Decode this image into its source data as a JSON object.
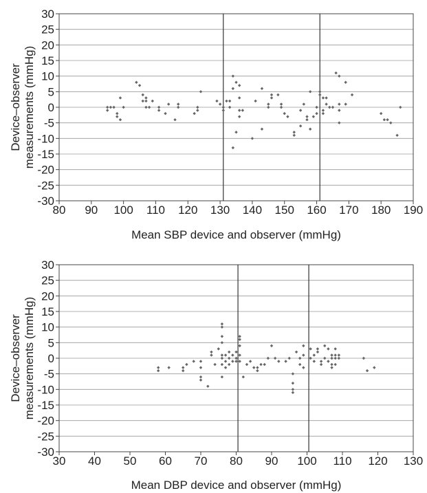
{
  "chart_data": [
    {
      "type": "scatter",
      "xlabel": "Mean SBP device and observer (mmHg)",
      "ylabel": [
        "Device–observer",
        "measurements (mmHg)"
      ],
      "xlim": [
        80,
        190
      ],
      "ylim": [
        -30,
        30
      ],
      "xticks": [
        80,
        90,
        100,
        110,
        120,
        130,
        140,
        150,
        160,
        170,
        180,
        190
      ],
      "yticks": [
        30,
        25,
        20,
        15,
        10,
        5,
        0,
        -5,
        -10,
        -15,
        -20,
        -25,
        -30
      ],
      "grid": "horizontal",
      "vlines": [
        131,
        161
      ],
      "marker_color": "#666666",
      "points": [
        [
          95,
          -1
        ],
        [
          95,
          0
        ],
        [
          96,
          0
        ],
        [
          97,
          0
        ],
        [
          98,
          -2
        ],
        [
          98,
          -3
        ],
        [
          99,
          3
        ],
        [
          99,
          -4
        ],
        [
          100,
          0
        ],
        [
          104,
          8
        ],
        [
          105,
          7
        ],
        [
          106,
          4
        ],
        [
          106,
          2
        ],
        [
          107,
          3
        ],
        [
          107,
          2
        ],
        [
          107,
          0
        ],
        [
          108,
          0
        ],
        [
          109,
          2
        ],
        [
          111,
          -1
        ],
        [
          111,
          0
        ],
        [
          113,
          -2
        ],
        [
          114,
          1
        ],
        [
          116,
          -4
        ],
        [
          117,
          1
        ],
        [
          117,
          0
        ],
        [
          122,
          -2
        ],
        [
          123,
          -1
        ],
        [
          123,
          0
        ],
        [
          124,
          5
        ],
        [
          129,
          2
        ],
        [
          130,
          1
        ],
        [
          131,
          0
        ],
        [
          131,
          -1
        ],
        [
          132,
          2
        ],
        [
          133,
          2
        ],
        [
          133,
          0
        ],
        [
          134,
          10
        ],
        [
          134,
          6
        ],
        [
          134,
          -13
        ],
        [
          135,
          8
        ],
        [
          135,
          -8
        ],
        [
          136,
          3
        ],
        [
          136,
          7
        ],
        [
          136,
          -1
        ],
        [
          137,
          -1
        ],
        [
          136,
          -3
        ],
        [
          140,
          -10
        ],
        [
          141,
          2
        ],
        [
          143,
          6
        ],
        [
          143,
          -7
        ],
        [
          145,
          0
        ],
        [
          145,
          1
        ],
        [
          146,
          4
        ],
        [
          146,
          3
        ],
        [
          148,
          4
        ],
        [
          149,
          1
        ],
        [
          149,
          0
        ],
        [
          150,
          -2
        ],
        [
          151,
          -3
        ],
        [
          153,
          -8
        ],
        [
          153,
          -9
        ],
        [
          155,
          -1
        ],
        [
          155,
          -6
        ],
        [
          156,
          1
        ],
        [
          157,
          -3
        ],
        [
          157,
          -4
        ],
        [
          158,
          5
        ],
        [
          158,
          -7
        ],
        [
          159,
          -3
        ],
        [
          160,
          0
        ],
        [
          160,
          -2
        ],
        [
          161,
          5
        ],
        [
          161,
          4
        ],
        [
          162,
          3
        ],
        [
          162,
          -1
        ],
        [
          162,
          -2
        ],
        [
          163,
          3
        ],
        [
          163,
          1
        ],
        [
          164,
          0
        ],
        [
          165,
          0
        ],
        [
          166,
          11
        ],
        [
          167,
          10
        ],
        [
          167,
          1
        ],
        [
          167,
          -1
        ],
        [
          167,
          -5
        ],
        [
          169,
          8
        ],
        [
          169,
          1
        ],
        [
          171,
          4
        ],
        [
          180,
          -2
        ],
        [
          181,
          -4
        ],
        [
          182,
          -4
        ],
        [
          183,
          -5
        ],
        [
          185,
          -9
        ],
        [
          186,
          0
        ]
      ]
    },
    {
      "type": "scatter",
      "xlabel": "Mean DBP device and observer (mmHg)",
      "ylabel": [
        "Device–observer",
        "measurements (mmHg)"
      ],
      "xlim": [
        30,
        130
      ],
      "ylim": [
        -30,
        30
      ],
      "xticks": [
        30,
        40,
        50,
        60,
        70,
        80,
        90,
        100,
        110,
        120,
        130
      ],
      "yticks": [
        30,
        25,
        20,
        15,
        10,
        5,
        0,
        -5,
        -10,
        -15,
        -20,
        -25,
        -30
      ],
      "grid": "horizontal",
      "vlines": [
        80.5,
        100.5
      ],
      "marker_color": "#666666",
      "points": [
        [
          58,
          -3
        ],
        [
          58,
          -4
        ],
        [
          61,
          -3
        ],
        [
          65,
          -3
        ],
        [
          65,
          -4
        ],
        [
          66,
          -2
        ],
        [
          68,
          -1
        ],
        [
          70,
          -1
        ],
        [
          70,
          -3
        ],
        [
          70,
          -6
        ],
        [
          70,
          -7
        ],
        [
          72,
          -9
        ],
        [
          73,
          2
        ],
        [
          73,
          1
        ],
        [
          74,
          -2
        ],
        [
          75,
          3
        ],
        [
          76,
          11
        ],
        [
          76,
          10
        ],
        [
          76,
          7
        ],
        [
          76,
          5
        ],
        [
          76,
          1
        ],
        [
          76,
          0
        ],
        [
          76,
          -2
        ],
        [
          76,
          -6
        ],
        [
          77,
          1
        ],
        [
          77,
          -1
        ],
        [
          77,
          -3
        ],
        [
          78,
          2
        ],
        [
          78,
          0
        ],
        [
          78,
          -2
        ],
        [
          79,
          1
        ],
        [
          79,
          -1
        ],
        [
          80,
          2
        ],
        [
          80,
          0
        ],
        [
          80,
          -1
        ],
        [
          81,
          7
        ],
        [
          81,
          6
        ],
        [
          81,
          4
        ],
        [
          81,
          1
        ],
        [
          81,
          -1
        ],
        [
          82,
          -6
        ],
        [
          83,
          -2
        ],
        [
          84,
          -1
        ],
        [
          85,
          -3
        ],
        [
          86,
          -3
        ],
        [
          86,
          -4
        ],
        [
          87,
          -2
        ],
        [
          88,
          -2
        ],
        [
          89,
          0
        ],
        [
          90,
          4
        ],
        [
          91,
          0
        ],
        [
          92,
          -1
        ],
        [
          94,
          -1
        ],
        [
          95,
          0
        ],
        [
          96,
          -5
        ],
        [
          96,
          -8
        ],
        [
          96,
          -10
        ],
        [
          96,
          -11
        ],
        [
          97,
          2
        ],
        [
          98,
          0
        ],
        [
          98,
          -2
        ],
        [
          99,
          4
        ],
        [
          99,
          1
        ],
        [
          99,
          -3
        ],
        [
          101,
          3
        ],
        [
          101,
          0
        ],
        [
          102,
          1
        ],
        [
          102,
          -1
        ],
        [
          103,
          3
        ],
        [
          103,
          2
        ],
        [
          104,
          -1
        ],
        [
          104,
          -2
        ],
        [
          105,
          4
        ],
        [
          105,
          0
        ],
        [
          106,
          3
        ],
        [
          106,
          -1
        ],
        [
          107,
          1
        ],
        [
          107,
          0
        ],
        [
          107,
          -2
        ],
        [
          107,
          -3
        ],
        [
          108,
          3
        ],
        [
          108,
          1
        ],
        [
          108,
          0
        ],
        [
          108,
          -2
        ],
        [
          109,
          1
        ],
        [
          109,
          0
        ],
        [
          116,
          0
        ],
        [
          117,
          -4
        ],
        [
          119,
          -3
        ]
      ]
    }
  ]
}
